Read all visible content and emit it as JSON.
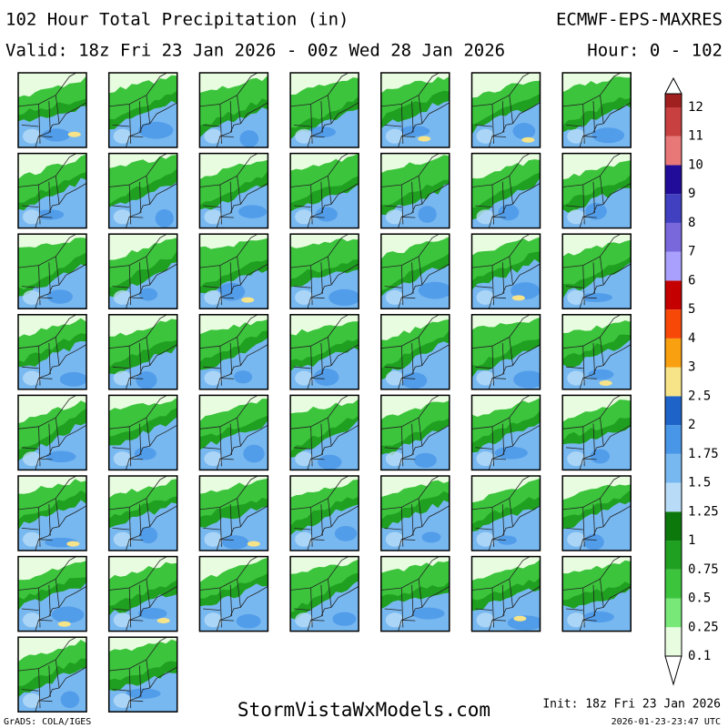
{
  "header": {
    "title": "102 Hour Total Precipitation (in)",
    "model": "ECMWF-EPS-MAXRES",
    "valid": "Valid: 18z Fri 23 Jan 2026 - 00z Wed 28 Jan 2026",
    "hours": "Hour: 0 - 102"
  },
  "colorbar": {
    "levels": [
      "0.1",
      "0.25",
      "0.5",
      "0.75",
      "1",
      "1.25",
      "1.5",
      "1.75",
      "2",
      "2.5",
      "3",
      "4",
      "5",
      "6",
      "7",
      "8",
      "9",
      "10",
      "11",
      "12"
    ],
    "colors": [
      "#e8fce0",
      "#78e878",
      "#3cc43c",
      "#20a020",
      "#0c780c",
      "#b8dcf8",
      "#78b8f0",
      "#4896e8",
      "#1e64c8",
      "#f8e488",
      "#f8a010",
      "#f84808",
      "#c40000",
      "#a8a0fc",
      "#7868dc",
      "#4040c0",
      "#200c98",
      "#e87878",
      "#c84040",
      "#a02020"
    ]
  },
  "footer": {
    "site": "StormVistaWxModels.com",
    "init": "Init: 18z Fri 23 Jan 2026",
    "grads": "GrADS: COLA/IGES",
    "stamp": "2026-01-23-23:47 UTC"
  }
}
